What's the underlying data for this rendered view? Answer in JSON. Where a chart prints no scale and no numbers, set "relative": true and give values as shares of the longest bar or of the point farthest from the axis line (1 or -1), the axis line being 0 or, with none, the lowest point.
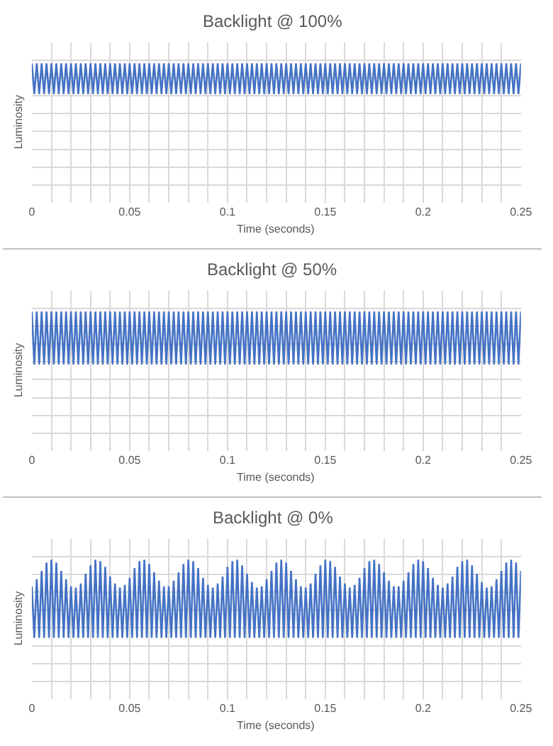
{
  "chart_data": [
    {
      "type": "line",
      "title": "Backlight @ 100%",
      "xlabel": "Time (seconds)",
      "ylabel": "Luminosity",
      "relative": true,
      "grid": true,
      "xlim": [
        0,
        0.25
      ],
      "xticks": [
        0,
        {
          "value": 0.01,
          "label": null
        },
        {
          "value": 0.02,
          "label": null
        },
        {
          "value": 0.03,
          "label": null
        },
        {
          "value": 0.04,
          "label": null
        },
        0.05,
        {
          "value": 0.06,
          "label": null
        },
        {
          "value": 0.07,
          "label": null
        },
        {
          "value": 0.08,
          "label": null
        },
        {
          "value": 0.09,
          "label": null
        },
        0.1,
        {
          "value": 0.11,
          "label": null
        },
        {
          "value": 0.12,
          "label": null
        },
        {
          "value": 0.13,
          "label": null
        },
        {
          "value": 0.14,
          "label": null
        },
        0.15,
        {
          "value": 0.16,
          "label": null
        },
        {
          "value": 0.17,
          "label": null
        },
        {
          "value": 0.18,
          "label": null
        },
        {
          "value": 0.19,
          "label": null
        },
        0.2,
        {
          "value": 0.21,
          "label": null
        },
        {
          "value": 0.22,
          "label": null
        },
        {
          "value": 0.23,
          "label": null
        },
        {
          "value": 0.24,
          "label": null
        },
        0.25
      ],
      "x": [
        0,
        0.00125,
        0.0025,
        0.00375,
        0.005,
        0.00625,
        0.0075,
        0.00875,
        0.01,
        0.01125,
        0.0125,
        0.01375,
        0.015,
        0.01625,
        0.0175,
        0.01875,
        0.02,
        0.02125,
        0.0225,
        0.02375,
        0.025,
        0.02625,
        0.0275,
        0.02875,
        0.03,
        0.03125,
        0.0325,
        0.03375,
        0.035,
        0.03625,
        0.0375,
        0.03875,
        0.04,
        0.04125,
        0.0425,
        0.04375,
        0.045,
        0.04625,
        0.0475,
        0.04875,
        0.05,
        0.05125,
        0.0525,
        0.05375,
        0.055,
        0.05625,
        0.0575,
        0.05875,
        0.06,
        0.06125,
        0.0625,
        0.06375,
        0.065,
        0.06625,
        0.0675,
        0.06875,
        0.07,
        0.07125,
        0.0725,
        0.07375,
        0.075,
        0.07625,
        0.0775,
        0.07875,
        0.08,
        0.08125,
        0.0825,
        0.08375,
        0.085,
        0.08625,
        0.0875,
        0.08875,
        0.09,
        0.09125,
        0.0925,
        0.09375,
        0.095,
        0.09625,
        0.0975,
        0.09875,
        0.1,
        0.10125,
        0.1025,
        0.10375,
        0.105,
        0.10625,
        0.1075,
        0.10875,
        0.11,
        0.11125,
        0.1125,
        0.11375,
        0.115,
        0.11625,
        0.1175,
        0.11875,
        0.12,
        0.12125,
        0.1225,
        0.12375,
        0.125,
        0.12625,
        0.1275,
        0.12875,
        0.13,
        0.13125,
        0.1325,
        0.13375,
        0.135,
        0.13625,
        0.1375,
        0.13875,
        0.14,
        0.14125,
        0.1425,
        0.14375,
        0.145,
        0.14625,
        0.1475,
        0.14875,
        0.15,
        0.15125,
        0.1525,
        0.15375,
        0.155,
        0.15625,
        0.1575,
        0.15875,
        0.16,
        0.16125,
        0.1625,
        0.16375,
        0.165,
        0.16625,
        0.1675,
        0.16875,
        0.17,
        0.17125,
        0.1725,
        0.17375,
        0.175,
        0.17625,
        0.1775,
        0.17875,
        0.18,
        0.18125,
        0.1825,
        0.18375,
        0.185,
        0.18625,
        0.1875,
        0.18875,
        0.19,
        0.19125,
        0.1925,
        0.19375,
        0.195,
        0.19625,
        0.1975,
        0.19875,
        0.2,
        0.20125,
        0.2025,
        0.20375,
        0.205,
        0.20625,
        0.2075,
        0.20875,
        0.21,
        0.21125,
        0.2125,
        0.21375,
        0.215,
        0.21625,
        0.2175,
        0.21875,
        0.22,
        0.22125,
        0.2225,
        0.22375,
        0.225,
        0.22625,
        0.2275,
        0.22875,
        0.23,
        0.23125,
        0.2325,
        0.23375,
        0.235,
        0.23625,
        0.2375,
        0.23875,
        0.24,
        0.24125,
        0.2425,
        0.24375,
        0.245,
        0.24625,
        0.2475,
        0.24875,
        0.25
      ],
      "series": [
        {
          "color": "#4472c4",
          "values": [
            1,
            0.78,
            1,
            0.78,
            1,
            0.78,
            1,
            0.78,
            1,
            0.78,
            1,
            0.78,
            1,
            0.78,
            1,
            0.78,
            1,
            0.78,
            1,
            0.78,
            1,
            0.78,
            1,
            0.78,
            1,
            0.78,
            1,
            0.78,
            1,
            0.78,
            1,
            0.78,
            1,
            0.78,
            1,
            0.78,
            1,
            0.78,
            1,
            0.78,
            1,
            0.78,
            1,
            0.78,
            1,
            0.78,
            1,
            0.78,
            1,
            0.78,
            1,
            0.78,
            1,
            0.78,
            1,
            0.78,
            1,
            0.78,
            1,
            0.78,
            1,
            0.78,
            1,
            0.78,
            1,
            0.78,
            1,
            0.78,
            1,
            0.78,
            1,
            0.78,
            1,
            0.78,
            1,
            0.78,
            1,
            0.78,
            1,
            0.78,
            1,
            0.78,
            1,
            0.78,
            1,
            0.78,
            1,
            0.78,
            1,
            0.78,
            1,
            0.78,
            1,
            0.78,
            1,
            0.78,
            1,
            0.78,
            1,
            0.78,
            1,
            0.78,
            1,
            0.78,
            1,
            0.78,
            1,
            0.78,
            1,
            0.78,
            1,
            0.78,
            1,
            0.78,
            1,
            0.78,
            1,
            0.78,
            1,
            0.78,
            1,
            0.78,
            1,
            0.78,
            1,
            0.78,
            1,
            0.78,
            1,
            0.78,
            1,
            0.78,
            1,
            0.78,
            1,
            0.78,
            1,
            0.78,
            1,
            0.78,
            1,
            0.78,
            1,
            0.78,
            1,
            0.78,
            1,
            0.78,
            1,
            0.78,
            1,
            0.78,
            1,
            0.78,
            1,
            0.78,
            1,
            0.78,
            1,
            0.78,
            1,
            0.78,
            1,
            0.78,
            1,
            0.78,
            1,
            0.78,
            1,
            0.78,
            1,
            0.78,
            1,
            0.78,
            1,
            0.78,
            1,
            0.78,
            1,
            0.78,
            1,
            0.78,
            1,
            0.78,
            1,
            0.78,
            1,
            0.78,
            1,
            0.78,
            1,
            0.78,
            1,
            0.78,
            1,
            0.78,
            1,
            0.78,
            1,
            0.78,
            1
          ]
        }
      ]
    },
    {
      "type": "line",
      "title": "Backlight @ 50%",
      "xlabel": "Time (seconds)",
      "ylabel": "Luminosity",
      "relative": true,
      "grid": true,
      "xlim": [
        0,
        0.25
      ],
      "xticks": [
        0,
        {
          "value": 0.01,
          "label": null
        },
        {
          "value": 0.02,
          "label": null
        },
        {
          "value": 0.03,
          "label": null
        },
        {
          "value": 0.04,
          "label": null
        },
        0.05,
        {
          "value": 0.06,
          "label": null
        },
        {
          "value": 0.07,
          "label": null
        },
        {
          "value": 0.08,
          "label": null
        },
        {
          "value": 0.09,
          "label": null
        },
        0.1,
        {
          "value": 0.11,
          "label": null
        },
        {
          "value": 0.12,
          "label": null
        },
        {
          "value": 0.13,
          "label": null
        },
        {
          "value": 0.14,
          "label": null
        },
        0.15,
        {
          "value": 0.16,
          "label": null
        },
        {
          "value": 0.17,
          "label": null
        },
        {
          "value": 0.18,
          "label": null
        },
        {
          "value": 0.19,
          "label": null
        },
        0.2,
        {
          "value": 0.21,
          "label": null
        },
        {
          "value": 0.22,
          "label": null
        },
        {
          "value": 0.23,
          "label": null
        },
        {
          "value": 0.24,
          "label": null
        },
        0.25
      ],
      "x": [
        0,
        0.00125,
        0.0025,
        0.00375,
        0.005,
        0.00625,
        0.0075,
        0.00875,
        0.01,
        0.01125,
        0.0125,
        0.01375,
        0.015,
        0.01625,
        0.0175,
        0.01875,
        0.02,
        0.02125,
        0.0225,
        0.02375,
        0.025,
        0.02625,
        0.0275,
        0.02875,
        0.03,
        0.03125,
        0.0325,
        0.03375,
        0.035,
        0.03625,
        0.0375,
        0.03875,
        0.04,
        0.04125,
        0.0425,
        0.04375,
        0.045,
        0.04625,
        0.0475,
        0.04875,
        0.05,
        0.05125,
        0.0525,
        0.05375,
        0.055,
        0.05625,
        0.0575,
        0.05875,
        0.06,
        0.06125,
        0.0625,
        0.06375,
        0.065,
        0.06625,
        0.0675,
        0.06875,
        0.07,
        0.07125,
        0.0725,
        0.07375,
        0.075,
        0.07625,
        0.0775,
        0.07875,
        0.08,
        0.08125,
        0.0825,
        0.08375,
        0.085,
        0.08625,
        0.0875,
        0.08875,
        0.09,
        0.09125,
        0.0925,
        0.09375,
        0.095,
        0.09625,
        0.0975,
        0.09875,
        0.1,
        0.10125,
        0.1025,
        0.10375,
        0.105,
        0.10625,
        0.1075,
        0.10875,
        0.11,
        0.11125,
        0.1125,
        0.11375,
        0.115,
        0.11625,
        0.1175,
        0.11875,
        0.12,
        0.12125,
        0.1225,
        0.12375,
        0.125,
        0.12625,
        0.1275,
        0.12875,
        0.13,
        0.13125,
        0.1325,
        0.13375,
        0.135,
        0.13625,
        0.1375,
        0.13875,
        0.14,
        0.14125,
        0.1425,
        0.14375,
        0.145,
        0.14625,
        0.1475,
        0.14875,
        0.15,
        0.15125,
        0.1525,
        0.15375,
        0.155,
        0.15625,
        0.1575,
        0.15875,
        0.16,
        0.16125,
        0.1625,
        0.16375,
        0.165,
        0.16625,
        0.1675,
        0.16875,
        0.17,
        0.17125,
        0.1725,
        0.17375,
        0.175,
        0.17625,
        0.1775,
        0.17875,
        0.18,
        0.18125,
        0.1825,
        0.18375,
        0.185,
        0.18625,
        0.1875,
        0.18875,
        0.19,
        0.19125,
        0.1925,
        0.19375,
        0.195,
        0.19625,
        0.1975,
        0.19875,
        0.2,
        0.20125,
        0.2025,
        0.20375,
        0.205,
        0.20625,
        0.2075,
        0.20875,
        0.21,
        0.21125,
        0.2125,
        0.21375,
        0.215,
        0.21625,
        0.2175,
        0.21875,
        0.22,
        0.22125,
        0.2225,
        0.22375,
        0.225,
        0.22625,
        0.2275,
        0.22875,
        0.23,
        0.23125,
        0.2325,
        0.23375,
        0.235,
        0.23625,
        0.2375,
        0.23875,
        0.24,
        0.24125,
        0.2425,
        0.24375,
        0.245,
        0.24625,
        0.2475,
        0.24875,
        0.25
      ],
      "series": [
        {
          "color": "#4472c4",
          "values": [
            1,
            0.62,
            1,
            0.62,
            1,
            0.62,
            1,
            0.62,
            1,
            0.62,
            1,
            0.62,
            1,
            0.62,
            1,
            0.62,
            1,
            0.62,
            1,
            0.62,
            1,
            0.62,
            1,
            0.62,
            1,
            0.62,
            1,
            0.62,
            1,
            0.62,
            1,
            0.62,
            1,
            0.62,
            1,
            0.62,
            1,
            0.62,
            1,
            0.62,
            1,
            0.62,
            1,
            0.62,
            1,
            0.62,
            1,
            0.62,
            1,
            0.62,
            1,
            0.62,
            1,
            0.62,
            1,
            0.62,
            1,
            0.62,
            1,
            0.62,
            1,
            0.62,
            1,
            0.62,
            1,
            0.62,
            1,
            0.62,
            1,
            0.62,
            1,
            0.62,
            1,
            0.62,
            1,
            0.62,
            1,
            0.62,
            1,
            0.62,
            1,
            0.62,
            1,
            0.62,
            1,
            0.62,
            1,
            0.62,
            1,
            0.62,
            1,
            0.62,
            1,
            0.62,
            1,
            0.62,
            1,
            0.62,
            1,
            0.62,
            1,
            0.62,
            1,
            0.62,
            1,
            0.62,
            1,
            0.62,
            1,
            0.62,
            1,
            0.62,
            1,
            0.62,
            1,
            0.62,
            1,
            0.62,
            1,
            0.62,
            1,
            0.62,
            1,
            0.62,
            1,
            0.62,
            1,
            0.62,
            1,
            0.62,
            1,
            0.62,
            1,
            0.62,
            1,
            0.62,
            1,
            0.62,
            1,
            0.62,
            1,
            0.62,
            1,
            0.62,
            1,
            0.62,
            1,
            0.62,
            1,
            0.62,
            1,
            0.62,
            1,
            0.62,
            1,
            0.62,
            1,
            0.62,
            1,
            0.62,
            1,
            0.62,
            1,
            0.62,
            1,
            0.62,
            1,
            0.62,
            1,
            0.62,
            1,
            0.62,
            1,
            0.62,
            1,
            0.62,
            1,
            0.62,
            1,
            0.62,
            1,
            0.62,
            1,
            0.62,
            1,
            0.62,
            1,
            0.62,
            1,
            0.62,
            1,
            0.62,
            1,
            0.62,
            1,
            0.62,
            1,
            0.62,
            1,
            0.62,
            1
          ]
        }
      ]
    },
    {
      "type": "line",
      "title": "Backlight @ 0%",
      "xlabel": "Time (seconds)",
      "ylabel": "Luminosity",
      "relative": true,
      "grid": true,
      "xlim": [
        0,
        0.25
      ],
      "xticks": [
        0,
        {
          "value": 0.01,
          "label": null
        },
        {
          "value": 0.02,
          "label": null
        },
        {
          "value": 0.03,
          "label": null
        },
        {
          "value": 0.04,
          "label": null
        },
        0.05,
        {
          "value": 0.06,
          "label": null
        },
        {
          "value": 0.07,
          "label": null
        },
        {
          "value": 0.08,
          "label": null
        },
        {
          "value": 0.09,
          "label": null
        },
        0.1,
        {
          "value": 0.11,
          "label": null
        },
        {
          "value": 0.12,
          "label": null
        },
        {
          "value": 0.13,
          "label": null
        },
        {
          "value": 0.14,
          "label": null
        },
        0.15,
        {
          "value": 0.16,
          "label": null
        },
        {
          "value": 0.17,
          "label": null
        },
        {
          "value": 0.18,
          "label": null
        },
        {
          "value": 0.19,
          "label": null
        },
        0.2,
        {
          "value": 0.21,
          "label": null
        },
        {
          "value": 0.22,
          "label": null
        },
        {
          "value": 0.23,
          "label": null
        },
        {
          "value": 0.24,
          "label": null
        },
        0.25
      ],
      "x": [
        0,
        0.00125,
        0.0025,
        0.00375,
        0.005,
        0.00625,
        0.0075,
        0.00875,
        0.01,
        0.01125,
        0.0125,
        0.01375,
        0.015,
        0.01625,
        0.0175,
        0.01875,
        0.02,
        0.02125,
        0.0225,
        0.02375,
        0.025,
        0.02625,
        0.0275,
        0.02875,
        0.03,
        0.03125,
        0.0325,
        0.03375,
        0.035,
        0.03625,
        0.0375,
        0.03875,
        0.04,
        0.04125,
        0.0425,
        0.04375,
        0.045,
        0.04625,
        0.0475,
        0.04875,
        0.05,
        0.05125,
        0.0525,
        0.05375,
        0.055,
        0.05625,
        0.0575,
        0.05875,
        0.06,
        0.06125,
        0.0625,
        0.06375,
        0.065,
        0.06625,
        0.0675,
        0.06875,
        0.07,
        0.07125,
        0.0725,
        0.07375,
        0.075,
        0.07625,
        0.0775,
        0.07875,
        0.08,
        0.08125,
        0.0825,
        0.08375,
        0.085,
        0.08625,
        0.0875,
        0.08875,
        0.09,
        0.09125,
        0.0925,
        0.09375,
        0.095,
        0.09625,
        0.0975,
        0.09875,
        0.1,
        0.10125,
        0.1025,
        0.10375,
        0.105,
        0.10625,
        0.1075,
        0.10875,
        0.11,
        0.11125,
        0.1125,
        0.11375,
        0.115,
        0.11625,
        0.1175,
        0.11875,
        0.12,
        0.12125,
        0.1225,
        0.12375,
        0.125,
        0.12625,
        0.1275,
        0.12875,
        0.13,
        0.13125,
        0.1325,
        0.13375,
        0.135,
        0.13625,
        0.1375,
        0.13875,
        0.14,
        0.14125,
        0.1425,
        0.14375,
        0.145,
        0.14625,
        0.1475,
        0.14875,
        0.15,
        0.15125,
        0.1525,
        0.15375,
        0.155,
        0.15625,
        0.1575,
        0.15875,
        0.16,
        0.16125,
        0.1625,
        0.16375,
        0.165,
        0.16625,
        0.1675,
        0.16875,
        0.17,
        0.17125,
        0.1725,
        0.17375,
        0.175,
        0.17625,
        0.1775,
        0.17875,
        0.18,
        0.18125,
        0.1825,
        0.18375,
        0.185,
        0.18625,
        0.1875,
        0.18875,
        0.19,
        0.19125,
        0.1925,
        0.19375,
        0.195,
        0.19625,
        0.1975,
        0.19875,
        0.2,
        0.20125,
        0.2025,
        0.20375,
        0.205,
        0.20625,
        0.2075,
        0.20875,
        0.21,
        0.21125,
        0.2125,
        0.21375,
        0.215,
        0.21625,
        0.2175,
        0.21875,
        0.22,
        0.22125,
        0.2225,
        0.22375,
        0.225,
        0.22625,
        0.2275,
        0.22875,
        0.23,
        0.23125,
        0.2325,
        0.23375,
        0.235,
        0.23625,
        0.2375,
        0.23875,
        0.24,
        0.24125,
        0.2425,
        0.24375,
        0.245,
        0.24625,
        0.2475,
        0.24875,
        0.25
      ],
      "series": [
        {
          "color": "#4472c4",
          "values": [
            0.81,
            0.44,
            0.86,
            0.44,
            0.92,
            0.44,
            0.98,
            0.44,
            1,
            0.44,
            0.98,
            0.44,
            0.92,
            0.44,
            0.86,
            0.44,
            0.81,
            0.44,
            0.8,
            0.44,
            0.83,
            0.44,
            0.9,
            0.44,
            0.96,
            0.44,
            1,
            0.44,
            0.99,
            0.44,
            0.95,
            0.44,
            0.88,
            0.44,
            0.83,
            0.44,
            0.8,
            0.44,
            0.82,
            0.44,
            0.87,
            0.44,
            0.94,
            0.44,
            0.99,
            0.44,
            1,
            0.44,
            0.97,
            0.44,
            0.91,
            0.44,
            0.85,
            0.44,
            0.81,
            0.44,
            0.81,
            0.44,
            0.85,
            0.44,
            0.91,
            0.44,
            0.97,
            0.44,
            1,
            0.44,
            0.99,
            0.44,
            0.94,
            0.44,
            0.87,
            0.44,
            0.82,
            0.44,
            0.8,
            0.44,
            0.83,
            0.44,
            0.88,
            0.44,
            0.95,
            0.44,
            0.99,
            0.44,
            1,
            0.44,
            0.96,
            0.44,
            0.9,
            0.44,
            0.84,
            0.44,
            0.8,
            0.44,
            0.81,
            0.44,
            0.86,
            0.44,
            0.92,
            0.44,
            0.98,
            0.44,
            1,
            0.44,
            0.98,
            0.44,
            0.92,
            0.44,
            0.86,
            0.44,
            0.81,
            0.44,
            0.8,
            0.44,
            0.83,
            0.44,
            0.9,
            0.44,
            0.96,
            0.44,
            1,
            0.44,
            0.99,
            0.44,
            0.95,
            0.44,
            0.88,
            0.44,
            0.83,
            0.44,
            0.8,
            0.44,
            0.82,
            0.44,
            0.87,
            0.44,
            0.94,
            0.44,
            0.99,
            0.44,
            1,
            0.44,
            0.97,
            0.44,
            0.91,
            0.44,
            0.85,
            0.44,
            0.81,
            0.44,
            0.81,
            0.44,
            0.85,
            0.44,
            0.91,
            0.44,
            0.97,
            0.44,
            1,
            0.44,
            0.99,
            0.44,
            0.94,
            0.44,
            0.87,
            0.44,
            0.82,
            0.44,
            0.8,
            0.44,
            0.83,
            0.44,
            0.88,
            0.44,
            0.95,
            0.44,
            0.99,
            0.44,
            1,
            0.44,
            0.96,
            0.44,
            0.9,
            0.44,
            0.84,
            0.44,
            0.8,
            0.44,
            0.81,
            0.44,
            0.86,
            0.44,
            0.92,
            0.44,
            0.98,
            0.44,
            1,
            0.44,
            0.98,
            0.44,
            0.92
          ]
        }
      ]
    }
  ]
}
